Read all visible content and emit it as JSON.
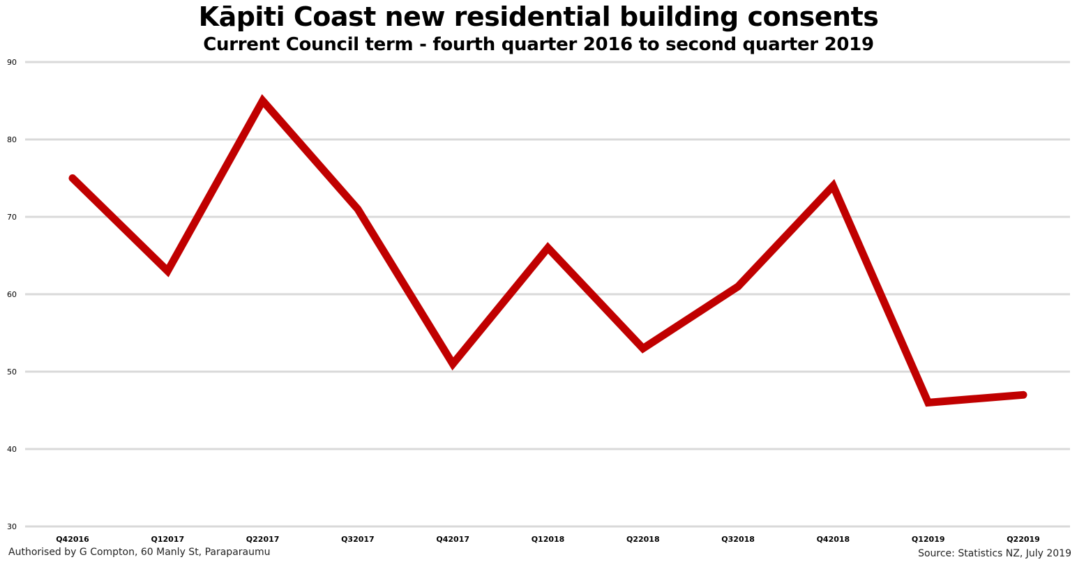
{
  "chart_data": {
    "type": "line",
    "title": "Kāpiti Coast new residential building consents",
    "subtitle": "Current Council term - fourth quarter 2016 to second quarter 2019",
    "categories": [
      "Q42016",
      "Q12017",
      "Q22017",
      "Q32017",
      "Q42017",
      "Q12018",
      "Q22018",
      "Q32018",
      "Q42018",
      "Q12019",
      "Q22019"
    ],
    "series": [
      {
        "values": [
          75,
          63,
          85,
          71,
          51,
          66,
          53,
          61,
          74,
          46,
          47
        ]
      }
    ],
    "ylim": [
      30,
      90
    ],
    "yticks": [
      30,
      40,
      50,
      60,
      70,
      80,
      90
    ],
    "grid": true,
    "line_color": "#c00000",
    "grid_color": "#d9d9d9"
  },
  "footer": {
    "left": "Authorised by G Compton, 60 Manly St, Paraparaumu",
    "right": "Source: Statistics NZ, July 2019"
  }
}
